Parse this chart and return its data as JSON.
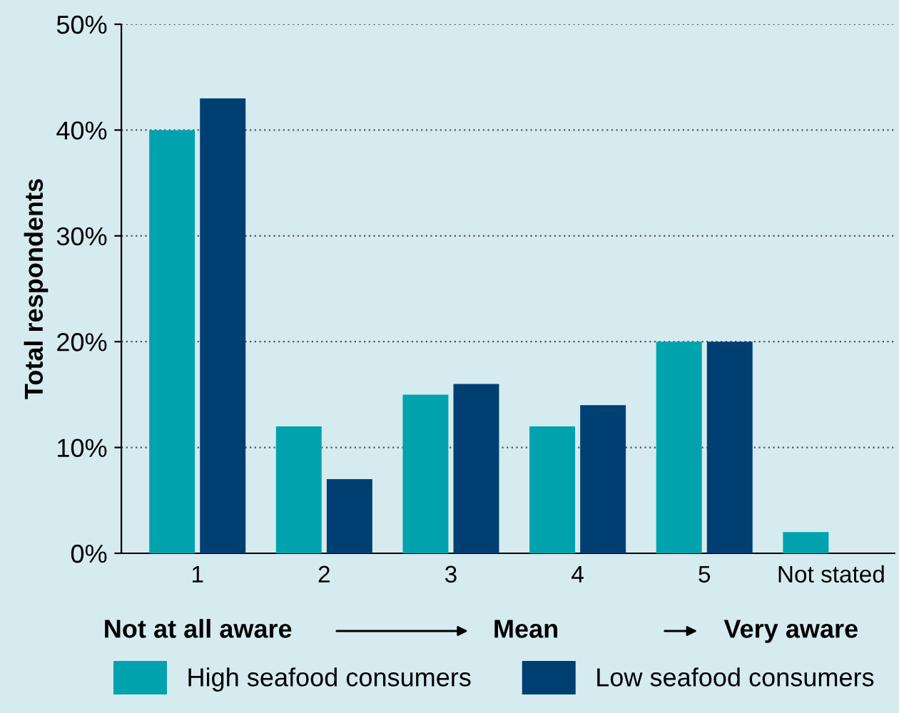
{
  "chart_data": {
    "type": "bar",
    "ylabel": "Total respondents",
    "categories": [
      "1",
      "2",
      "3",
      "4",
      "5",
      "Not stated"
    ],
    "series": [
      {
        "name": "High seafood consumers",
        "color": "#00a3ad",
        "values": [
          40,
          12,
          15,
          12,
          20,
          2
        ]
      },
      {
        "name": "Low seafood consumers",
        "color": "#003f72",
        "values": [
          43,
          7,
          16,
          14,
          20,
          null
        ]
      }
    ],
    "ylim": [
      0,
      50
    ],
    "yticks": [
      {
        "value": 0,
        "label": "0%"
      },
      {
        "value": 10,
        "label": "10%"
      },
      {
        "value": 20,
        "label": "20%"
      },
      {
        "value": 30,
        "label": "30%"
      },
      {
        "value": 40,
        "label": "40%"
      },
      {
        "value": 50,
        "label": "50%"
      }
    ],
    "grid": "y",
    "legend": "bottom",
    "annotations": [
      "Not at all aware",
      "Mean",
      "Very aware"
    ]
  }
}
